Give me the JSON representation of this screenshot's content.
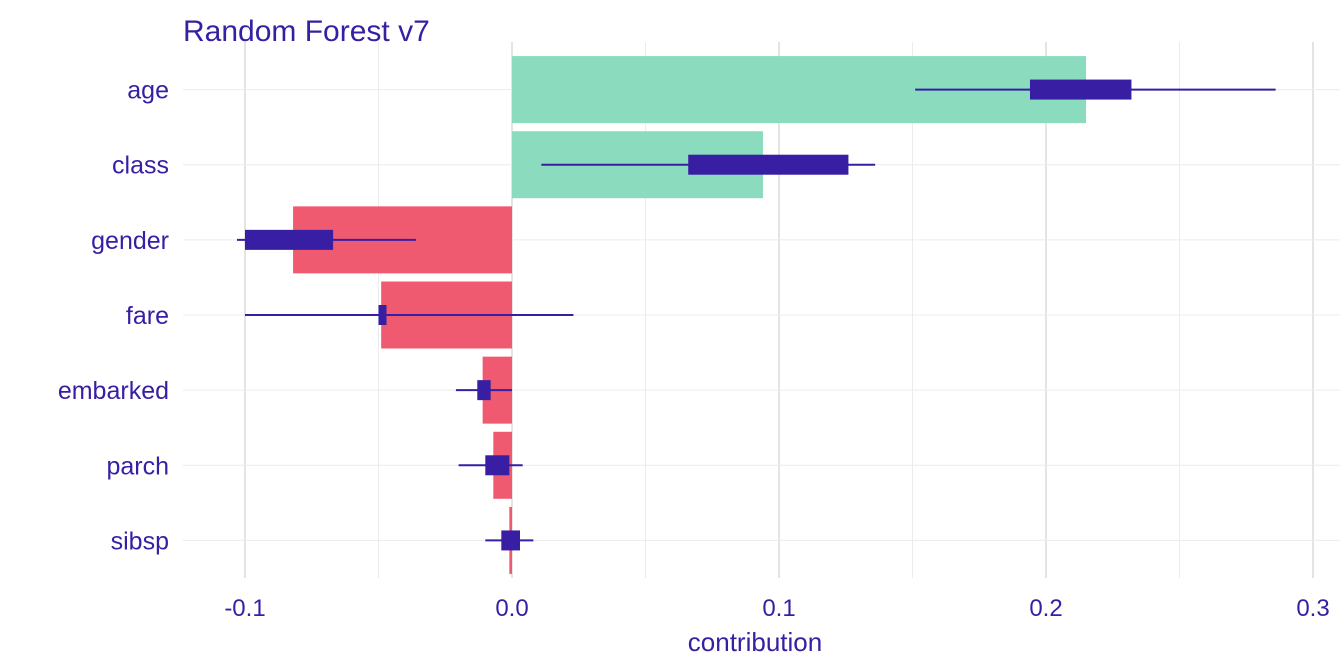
{
  "chart_data": {
    "type": "bar",
    "title": "Random Forest v7",
    "xlabel": "contribution",
    "ylabel": "",
    "xlim": [
      -0.124,
      0.303
    ],
    "xticks": [
      -0.1,
      0.0,
      0.1,
      0.2,
      0.3
    ],
    "xtick_labels": [
      "-0.1",
      "0.0",
      "0.1",
      "0.2",
      "0.3"
    ],
    "grid": true,
    "colors": {
      "positive": "#8bdcbe",
      "negative": "#f05a71",
      "boxplot": "#371ea3",
      "text": "#371ea3"
    },
    "categories": [
      "age",
      "class",
      "gender",
      "fare",
      "embarked",
      "parch",
      "sibsp"
    ],
    "values": [
      0.215,
      0.094,
      -0.082,
      -0.049,
      -0.011,
      -0.007,
      -0.001
    ],
    "boxplots": [
      {
        "min": 0.151,
        "q1": 0.194,
        "q3": 0.232,
        "max": 0.286
      },
      {
        "min": 0.011,
        "q1": 0.066,
        "q3": 0.126,
        "max": 0.136
      },
      {
        "min": -0.103,
        "q1": -0.1,
        "q3": -0.067,
        "max": -0.036
      },
      {
        "min": -0.1,
        "q1": -0.05,
        "q3": -0.047,
        "max": 0.023
      },
      {
        "min": -0.021,
        "q1": -0.013,
        "q3": -0.008,
        "max": 0.0
      },
      {
        "min": -0.02,
        "q1": -0.01,
        "q3": -0.001,
        "max": 0.004
      },
      {
        "min": -0.01,
        "q1": -0.004,
        "q3": 0.003,
        "max": 0.008
      }
    ]
  }
}
